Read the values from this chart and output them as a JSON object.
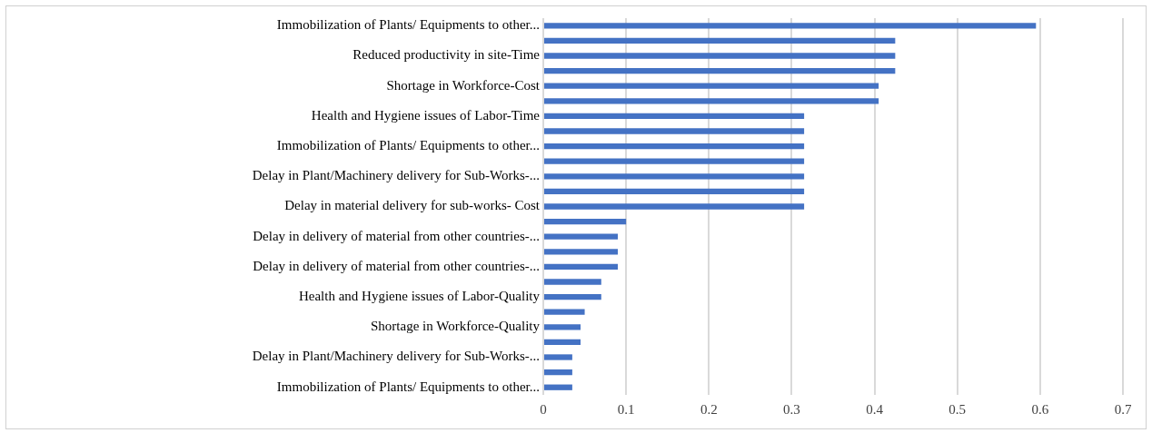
{
  "chart_data": {
    "type": "bar",
    "orientation": "horizontal",
    "categories": [
      "Immobilization of Plants/ Equipments to other...",
      null,
      "Reduced productivity in site-Time",
      null,
      "Shortage in Workforce-Cost",
      null,
      "Health and Hygiene issues of Labor-Time",
      null,
      "Immobilization of Plants/ Equipments to other...",
      null,
      "Delay in Plant/Machinery delivery for Sub-Works-...",
      null,
      "Delay in material delivery for sub-works- Cost",
      null,
      "Delay in delivery of material from other countries-...",
      null,
      "Delay in delivery of material from other countries-...",
      null,
      "Health and Hygiene issues of Labor-Quality",
      null,
      "Shortage in Workforce-Quality",
      null,
      "Delay in Plant/Machinery delivery for Sub-Works-...",
      null,
      "Immobilization of Plants/ Equipments to other..."
    ],
    "values": [
      0.595,
      0.425,
      0.425,
      0.425,
      0.405,
      0.405,
      0.315,
      0.315,
      0.315,
      0.315,
      0.315,
      0.315,
      0.315,
      0.1,
      0.09,
      0.09,
      0.09,
      0.07,
      0.07,
      0.05,
      0.045,
      0.045,
      0.035,
      0.035,
      0.035
    ],
    "color": "#4472c4",
    "xlim": [
      0,
      0.7
    ],
    "xticks": [
      0,
      0.1,
      0.2,
      0.3,
      0.4,
      0.5,
      0.6,
      0.7
    ],
    "grid": "x",
    "legend": false
  }
}
